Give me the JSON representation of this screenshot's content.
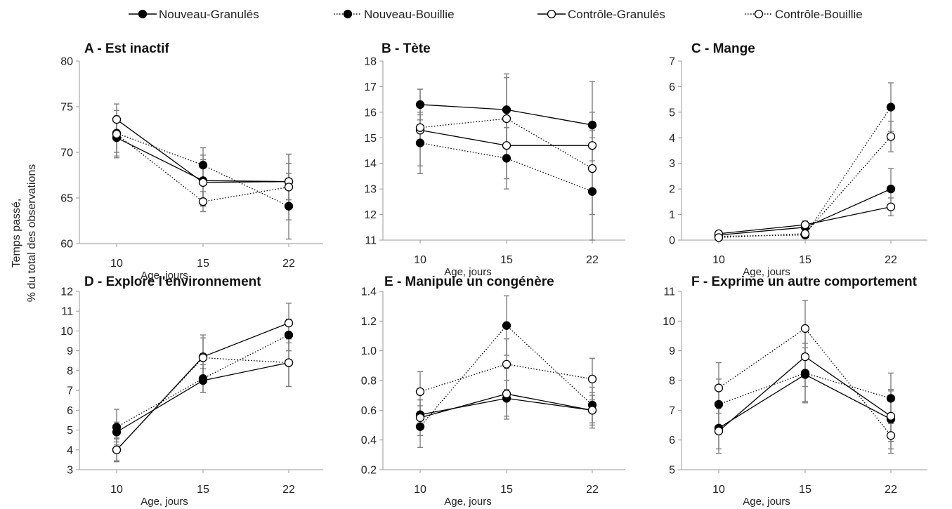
{
  "legend": [
    {
      "label": "Nouveau-Granulés",
      "marker": "filled",
      "line": "solid"
    },
    {
      "label": "Nouveau-Bouillie",
      "marker": "filled",
      "line": "dotted"
    },
    {
      "label": "Contrôle-Granulés",
      "marker": "open",
      "line": "solid"
    },
    {
      "label": "Contrôle-Bouillie",
      "marker": "open",
      "line": "dotted"
    }
  ],
  "y_axis_label": [
    "Temps passé,",
    "% du total des observations"
  ],
  "x_axis_label": "Age, jours",
  "colors": {
    "line": "#000000",
    "filled_marker": "#000000",
    "open_marker": "#ffffff",
    "error_bar": "#808080",
    "axis": "#9a9a9a"
  },
  "chart_data": [
    {
      "type": "line",
      "title": "A - Est inactif",
      "x": [
        10,
        15,
        22
      ],
      "xticks": [
        "10",
        "15",
        "22"
      ],
      "ylim": [
        60,
        80
      ],
      "yticks": [
        60,
        65,
        70,
        75,
        80
      ],
      "ydecimals": 0,
      "series": [
        {
          "name": "Nouveau-Granulés",
          "values": [
            71.6,
            66.9,
            66.8
          ],
          "err": [
            2.2,
            2.8,
            3.0
          ]
        },
        {
          "name": "Nouveau-Bouillie",
          "values": [
            72.1,
            68.6,
            64.1
          ],
          "err": [
            2.5,
            1.9,
            3.6
          ]
        },
        {
          "name": "Contrôle-Granulés",
          "values": [
            73.6,
            66.7,
            66.8
          ],
          "err": [
            1.7,
            2.5,
            2.0
          ]
        },
        {
          "name": "Contrôle-Bouillie",
          "values": [
            72.0,
            64.6,
            66.2
          ],
          "err": [
            2.0,
            1.1,
            3.6
          ]
        }
      ]
    },
    {
      "type": "line",
      "title": "B - Tète",
      "x": [
        10,
        15,
        22
      ],
      "xticks": [
        "10",
        "15",
        "22"
      ],
      "ylim": [
        11,
        18
      ],
      "yticks": [
        11,
        12,
        13,
        14,
        15,
        16,
        17,
        18
      ],
      "ydecimals": 0,
      "series": [
        {
          "name": "Nouveau-Granulés",
          "values": [
            16.3,
            16.1,
            15.5
          ],
          "err": [
            0.6,
            1.4,
            0.5
          ]
        },
        {
          "name": "Nouveau-Bouillie",
          "values": [
            14.8,
            14.2,
            12.9
          ],
          "err": [
            1.2,
            1.2,
            0.9
          ]
        },
        {
          "name": "Contrôle-Granulés",
          "values": [
            15.3,
            14.7,
            14.7
          ],
          "err": [
            0.6,
            1.3,
            0.6
          ]
        },
        {
          "name": "Contrôle-Bouillie",
          "values": [
            15.4,
            15.75,
            13.8
          ],
          "err": [
            1.5,
            1.6,
            3.4
          ]
        }
      ]
    },
    {
      "type": "line",
      "title": "C - Mange",
      "x": [
        10,
        15,
        22
      ],
      "xticks": [
        "10",
        "15",
        "22"
      ],
      "ylim": [
        0,
        7
      ],
      "yticks": [
        0,
        1,
        2,
        3,
        4,
        5,
        6,
        7
      ],
      "ydecimals": 0,
      "series": [
        {
          "name": "Nouveau-Granulés",
          "values": [
            0.2,
            0.5,
            2.0
          ],
          "err": [
            0.1,
            0.15,
            0.8
          ]
        },
        {
          "name": "Nouveau-Bouillie",
          "values": [
            0.15,
            0.2,
            5.2
          ],
          "err": [
            0.1,
            0.1,
            0.95
          ]
        },
        {
          "name": "Contrôle-Granulés",
          "values": [
            0.25,
            0.6,
            1.3
          ],
          "err": [
            0.1,
            0.15,
            0.35
          ]
        },
        {
          "name": "Contrôle-Bouillie",
          "values": [
            0.1,
            0.25,
            4.05
          ],
          "err": [
            0.05,
            0.1,
            0.6
          ]
        }
      ]
    },
    {
      "type": "line",
      "title": "D - Explore l'environnement",
      "x": [
        10,
        15,
        22
      ],
      "xticks": [
        "10",
        "15",
        "22"
      ],
      "ylim": [
        3,
        12
      ],
      "yticks": [
        3,
        4,
        5,
        6,
        7,
        8,
        9,
        10,
        11,
        12
      ],
      "ydecimals": 0,
      "series": [
        {
          "name": "Nouveau-Granulés",
          "values": [
            4.9,
            7.5,
            8.4
          ],
          "err": [
            0.5,
            0.6,
            1.2
          ]
        },
        {
          "name": "Nouveau-Bouillie",
          "values": [
            5.15,
            7.6,
            9.8
          ],
          "err": [
            0.9,
            0.7,
            0.8
          ]
        },
        {
          "name": "Contrôle-Granulés",
          "values": [
            4.0,
            8.7,
            10.4
          ],
          "err": [
            0.6,
            1.1,
            1.0
          ]
        },
        {
          "name": "Contrôle-Bouillie",
          "values": [
            4.0,
            8.65,
            8.4
          ],
          "err": [
            0.55,
            1.0,
            1.2
          ]
        }
      ]
    },
    {
      "type": "line",
      "title": "E - Manipule un congénère",
      "x": [
        10,
        15,
        22
      ],
      "xticks": [
        "10",
        "15",
        "22"
      ],
      "ylim": [
        0.2,
        1.4
      ],
      "yticks": [
        0.2,
        0.4,
        0.6,
        0.8,
        1.0,
        1.2,
        1.4
      ],
      "ydecimals": 1,
      "series": [
        {
          "name": "Nouveau-Granulés",
          "values": [
            0.57,
            0.68,
            0.6
          ],
          "err": [
            0.1,
            0.12,
            0.1
          ]
        },
        {
          "name": "Nouveau-Bouillie",
          "values": [
            0.49,
            1.17,
            0.635
          ],
          "err": [
            0.14,
            0.2,
            0.12
          ]
        },
        {
          "name": "Contrôle-Granulés",
          "values": [
            0.55,
            0.71,
            0.6
          ],
          "err": [
            0.12,
            0.17,
            0.12
          ]
        },
        {
          "name": "Contrôle-Bouillie",
          "values": [
            0.725,
            0.91,
            0.81
          ],
          "err": [
            0.135,
            0.17,
            0.14
          ]
        }
      ]
    },
    {
      "type": "line",
      "title": "F - Exprime un autre comportement",
      "x": [
        10,
        15,
        22
      ],
      "xticks": [
        "10",
        "15",
        "22"
      ],
      "ylim": [
        5,
        11
      ],
      "yticks": [
        5,
        6,
        7,
        8,
        9,
        10,
        11
      ],
      "ydecimals": 0,
      "series": [
        {
          "name": "Nouveau-Granulés",
          "values": [
            6.4,
            8.2,
            6.7
          ],
          "err": [
            0.7,
            0.9,
            1.0
          ]
        },
        {
          "name": "Nouveau-Bouillie",
          "values": [
            7.2,
            8.25,
            7.4
          ],
          "err": [
            0.85,
            1.0,
            0.85
          ]
        },
        {
          "name": "Contrôle-Granulés",
          "values": [
            6.3,
            8.8,
            6.8
          ],
          "err": [
            0.75,
            1.0,
            0.85
          ]
        },
        {
          "name": "Contrôle-Bouillie",
          "values": [
            7.75,
            9.75,
            6.15
          ],
          "err": [
            0.85,
            0.95,
            0.6
          ]
        }
      ]
    }
  ]
}
